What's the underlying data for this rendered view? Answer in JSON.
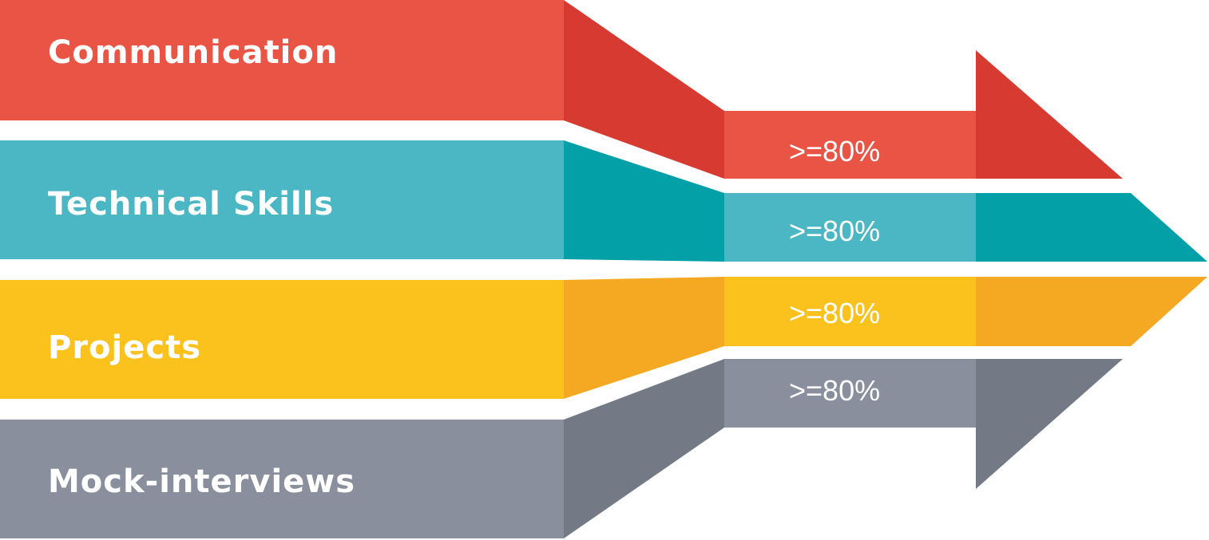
{
  "stages": [
    {
      "label": "Communication",
      "target": ">=80%",
      "target_percent": 80,
      "colors": {
        "main": "#EA5445",
        "dark": "#D63A30"
      }
    },
    {
      "label": "Technical Skills",
      "target": ">=80%",
      "target_percent": 80,
      "colors": {
        "main": "#4BB7C4",
        "dark": "#03A0A8"
      }
    },
    {
      "label": "Projects",
      "target": ">=80%",
      "target_percent": 80,
      "colors": {
        "main": "#FBC21E",
        "dark": "#F5A822"
      }
    },
    {
      "label": "Mock-interviews",
      "target": ">=80%",
      "target_percent": 80,
      "colors": {
        "main": "#898F9C",
        "dark": "#737A86"
      }
    }
  ]
}
